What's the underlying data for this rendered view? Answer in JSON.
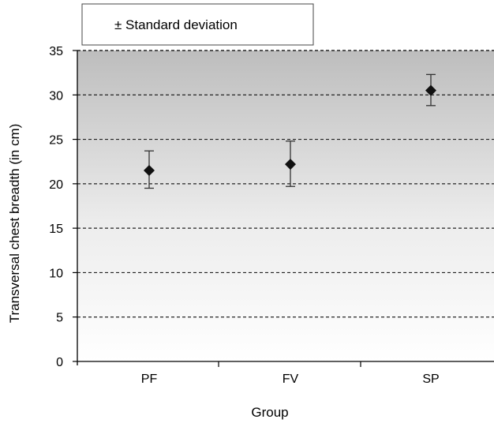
{
  "chart_data": {
    "type": "scatter",
    "categories": [
      "PF",
      "FV",
      "SP"
    ],
    "series": [
      {
        "values": [
          21.5,
          22.2,
          30.5
        ],
        "error": [
          [
            19.5,
            23.7
          ],
          [
            19.7,
            24.8
          ],
          [
            28.8,
            32.3
          ]
        ]
      }
    ],
    "xlabel": "Group",
    "ylabel": "Transversal chest breadth (in cm)",
    "yticks": [
      0,
      5,
      10,
      15,
      20,
      25,
      30,
      35
    ],
    "ylim": [
      0,
      35
    ],
    "grid": "horizontal dashed",
    "legend": {
      "text": "± Standard deviation",
      "position": "top"
    },
    "background": "vertical gradient, grey to white",
    "marker": "diamond",
    "colors": {
      "marker": "#111111",
      "grid": "#222222",
      "bg_top": "#bdbdbd",
      "bg_bottom": "#ffffff"
    }
  }
}
